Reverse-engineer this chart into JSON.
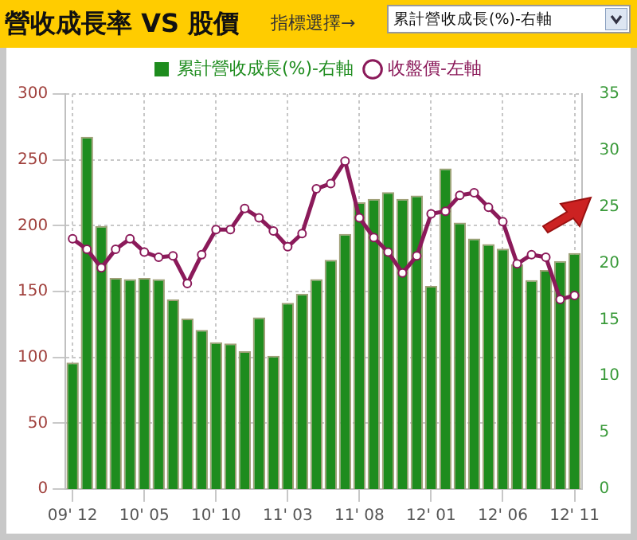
{
  "chart_data": {
    "type": "bar",
    "title": "營收成長率 VS 股價",
    "annotations": [
      "指標選擇→",
      "累計營收成長(%)-右軸"
    ],
    "categories": [
      "09' 12",
      null,
      null,
      null,
      null,
      "10' 05",
      null,
      null,
      null,
      null,
      "10' 10",
      null,
      null,
      null,
      null,
      "11' 03",
      null,
      null,
      null,
      null,
      "11' 08",
      null,
      null,
      null,
      null,
      "12' 01",
      null,
      null,
      null,
      null,
      "12' 06",
      null,
      null,
      null,
      null,
      "12' 11"
    ],
    "series": [
      {
        "name": "累計營收成長(%)-右軸",
        "axis": "y2",
        "color": "#1e8c1e",
        "values": [
          11.2,
          31.2,
          23.3,
          18.7,
          18.6,
          18.7,
          18.6,
          16.8,
          15.1,
          14.1,
          13.0,
          12.9,
          12.2,
          15.2,
          11.8,
          16.5,
          17.3,
          18.6,
          20.3,
          22.6,
          25.4,
          25.7,
          26.3,
          25.7,
          26.0,
          18.0,
          28.4,
          23.6,
          22.2,
          21.7,
          21.3,
          19.9,
          18.5,
          19.4,
          20.2,
          20.9
        ]
      },
      {
        "name": "收盤價-左軸",
        "type": "line",
        "axis": "y",
        "color": "#8b1a5a",
        "marker": "circle",
        "values": [
          190,
          182,
          168,
          182,
          190,
          180,
          176,
          177,
          156,
          178,
          197,
          197,
          213,
          206,
          196,
          184,
          194,
          228,
          232,
          249,
          206,
          191,
          180,
          164,
          177,
          209,
          211,
          223,
          225,
          214,
          203,
          171,
          178,
          176,
          144,
          147
        ]
      }
    ],
    "ylim": [
      0,
      300
    ],
    "yticks": [
      0,
      50,
      100,
      150,
      200,
      250,
      300
    ],
    "y2lim": [
      0,
      35
    ],
    "y2ticks": [
      0,
      5,
      10,
      15,
      20,
      25,
      30,
      35
    ],
    "grid": true,
    "legend": "top"
  }
}
